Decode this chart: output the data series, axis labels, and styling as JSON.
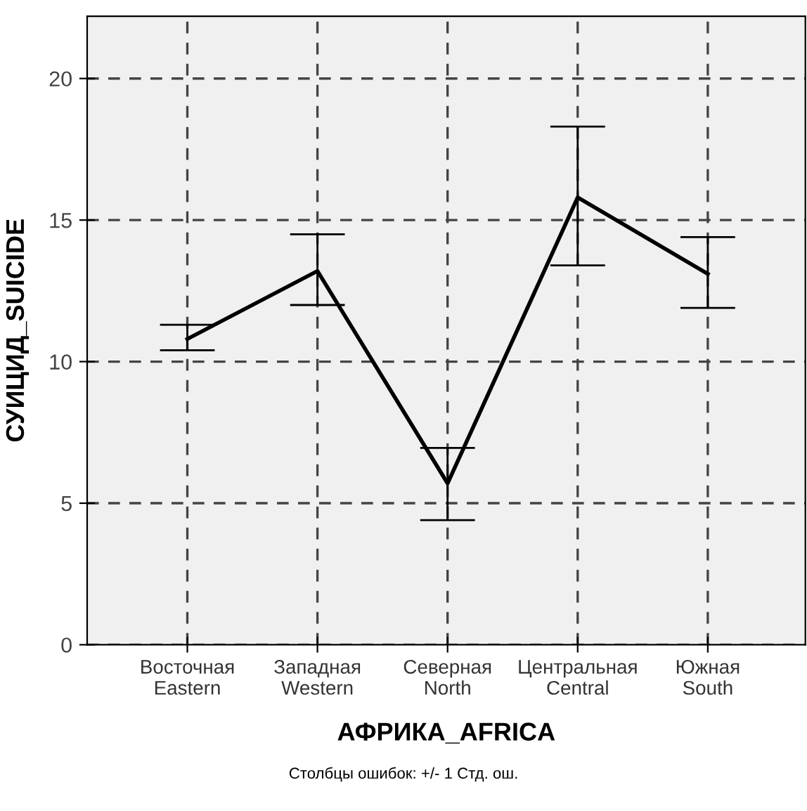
{
  "chart_data": {
    "type": "line",
    "xlabel": "АФРИКА_AFRICA",
    "ylabel": "СУИЦИД_SUICIDE",
    "categories": [
      "Восточная\nEastern",
      "Западная\nWestern",
      "Северная\nNorth",
      "Центральная\nCentral",
      "Южная\nSouth"
    ],
    "series": [
      {
        "color": "#000000",
        "values": [
          10.8,
          13.2,
          5.7,
          15.8,
          13.1
        ],
        "errors": [
          [
            10.4,
            11.3
          ],
          [
            12.0,
            14.5
          ],
          [
            4.4,
            6.95
          ],
          [
            13.4,
            18.3
          ],
          [
            11.9,
            14.4
          ]
        ]
      }
    ],
    "ylim": [
      0,
      22.2
    ],
    "yticks": [
      0,
      5,
      10,
      15,
      20
    ],
    "grid": true,
    "marker": "none",
    "line_style": "solid",
    "annotations": [
      "Столбцы ошибок: +/- 1 Стд. ош."
    ]
  }
}
